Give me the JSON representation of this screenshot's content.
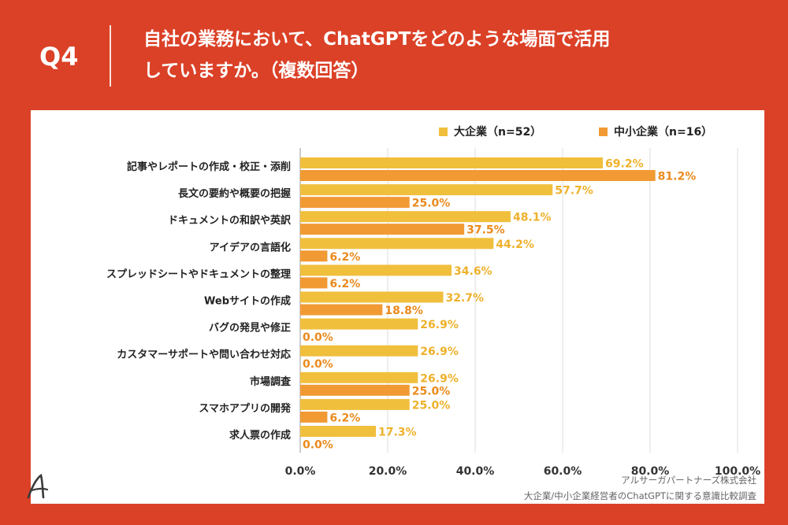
{
  "header": {
    "question_number": "Q4",
    "title_line1": "自社の業務において、ChatGPTをどのような場面で活用",
    "title_line2": "していますか。（複数回答）"
  },
  "chart_data": {
    "type": "bar",
    "orientation": "horizontal",
    "categories": [
      "記事やレポートの作成・校正・添削",
      "長文の要約や概要の把握",
      "ドキュメントの和訳や英訳",
      "アイデアの言語化",
      "スプレッドシートやドキュメントの整理",
      "Webサイトの作成",
      "バグの発見や修正",
      "カスタマーサポートや問い合わせ対応",
      "市場調査",
      "スマホアプリの開発",
      "求人票の作成"
    ],
    "series": [
      {
        "name": "大企業（n=52）",
        "color": "#f0bf3c",
        "label_color": "#eeb12a",
        "values": [
          69.2,
          57.7,
          48.1,
          44.2,
          34.6,
          32.7,
          26.9,
          26.9,
          26.9,
          25.0,
          17.3
        ]
      },
      {
        "name": "中小企業（n=16）",
        "color": "#f19a34",
        "label_color": "#ea8a1c",
        "values": [
          81.2,
          25.0,
          37.5,
          6.2,
          6.2,
          18.8,
          0.0,
          0.0,
          25.0,
          6.2,
          0.0
        ]
      }
    ],
    "xlim": [
      0,
      100
    ],
    "x_ticks": [
      "0.0%",
      "20.0%",
      "40.0%",
      "60.0%",
      "80.0%",
      "100.0%"
    ],
    "legend_position": "top-right",
    "grid": true
  },
  "footer": {
    "company": "アルサーガパートナーズ株式会社",
    "survey": "大企業/中小企業経営者のChatGPTに関する意識比較調査"
  }
}
